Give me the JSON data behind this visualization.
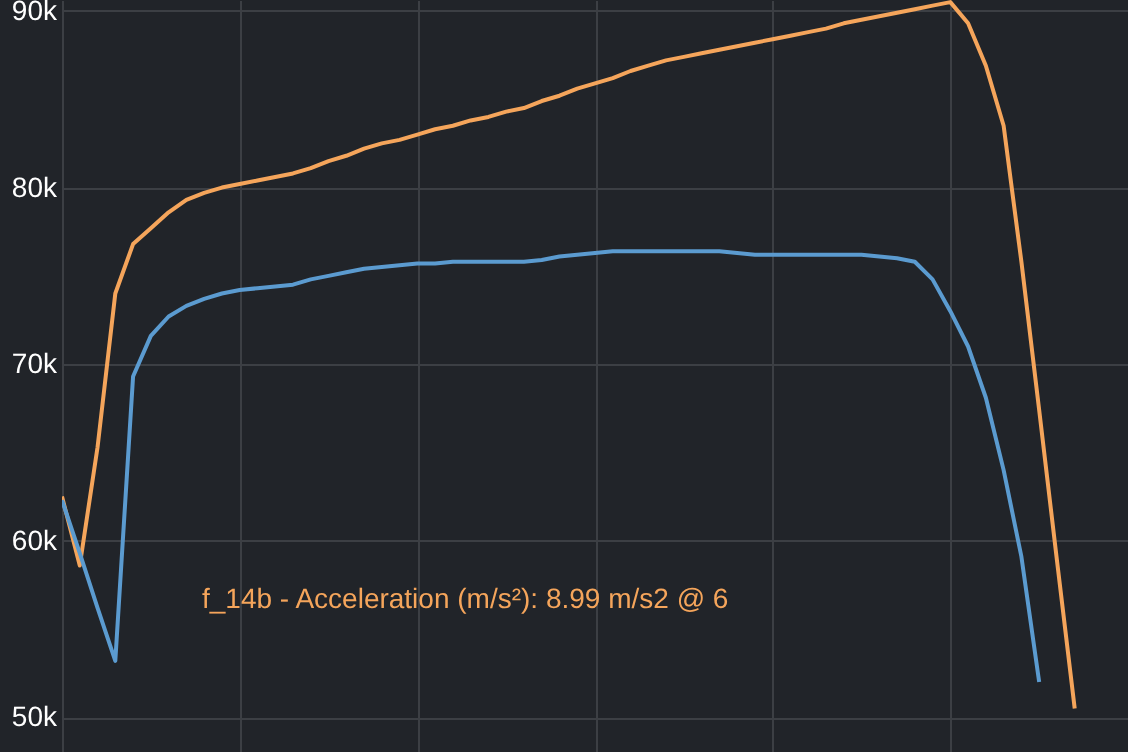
{
  "chart_data": {
    "type": "line",
    "categories": [
      null,
      null,
      null,
      null,
      null,
      null,
      null,
      null,
      null,
      null,
      null,
      null,
      null,
      null,
      null,
      null,
      null,
      null,
      null,
      null,
      null,
      null,
      null,
      null,
      null,
      null,
      null,
      null,
      null,
      null,
      null,
      null,
      null,
      null,
      null,
      null,
      null,
      null,
      null,
      null,
      null,
      null,
      null,
      null,
      null,
      null,
      null,
      null,
      null,
      null,
      null,
      null,
      null,
      null,
      null,
      null,
      null,
      null,
      null,
      null,
      null
    ],
    "series": [
      {
        "color": "#f5a55b",
        "values": [
          62500,
          58600,
          65300,
          74000,
          76800,
          77700,
          78600,
          79300,
          79700,
          80000,
          80200,
          80400,
          80600,
          80800,
          81100,
          81500,
          81800,
          82200,
          82500,
          82700,
          83000,
          83300,
          83500,
          83800,
          84000,
          84300,
          84500,
          84900,
          85200,
          85600,
          85900,
          86200,
          86600,
          86900,
          87200,
          87400,
          87600,
          87800,
          88000,
          88200,
          88400,
          88600,
          88800,
          89000,
          89300,
          89500,
          89700,
          89900,
          90100,
          90300,
          90500,
          89300,
          86900,
          83500,
          75800,
          67400,
          58900,
          50500,
          null,
          null,
          null
        ]
      },
      {
        "color": "#5b9bd0",
        "values": [
          62300,
          59300,
          56200,
          53200,
          69300,
          71600,
          72700,
          73300,
          73700,
          74000,
          74200,
          74300,
          74400,
          74500,
          74800,
          75000,
          75200,
          75400,
          75500,
          75600,
          75700,
          75700,
          75800,
          75800,
          75800,
          75800,
          75800,
          75900,
          76100,
          76200,
          76300,
          76400,
          76400,
          76400,
          76400,
          76400,
          76400,
          76400,
          76300,
          76200,
          76200,
          76200,
          76200,
          76200,
          76200,
          76200,
          76100,
          76000,
          75800,
          74800,
          73000,
          71000,
          68100,
          64000,
          59100,
          52000,
          null,
          null,
          null,
          null,
          null
        ]
      }
    ],
    "ylim": [
      48040,
      90620
    ],
    "yticks": [
      {
        "value": 50000,
        "label": "50k"
      },
      {
        "value": 60000,
        "label": "60k"
      },
      {
        "value": 70000,
        "label": "70k"
      },
      {
        "value": 80000,
        "label": "80k"
      },
      {
        "value": 90000,
        "label": "90k"
      }
    ],
    "grid": true,
    "marker": "none",
    "line_style": "solid",
    "tick_labels": "y",
    "annotations": [
      "f_14b - Acceleration (m/s²): 8.99 m/s2 @ 6"
    ]
  }
}
